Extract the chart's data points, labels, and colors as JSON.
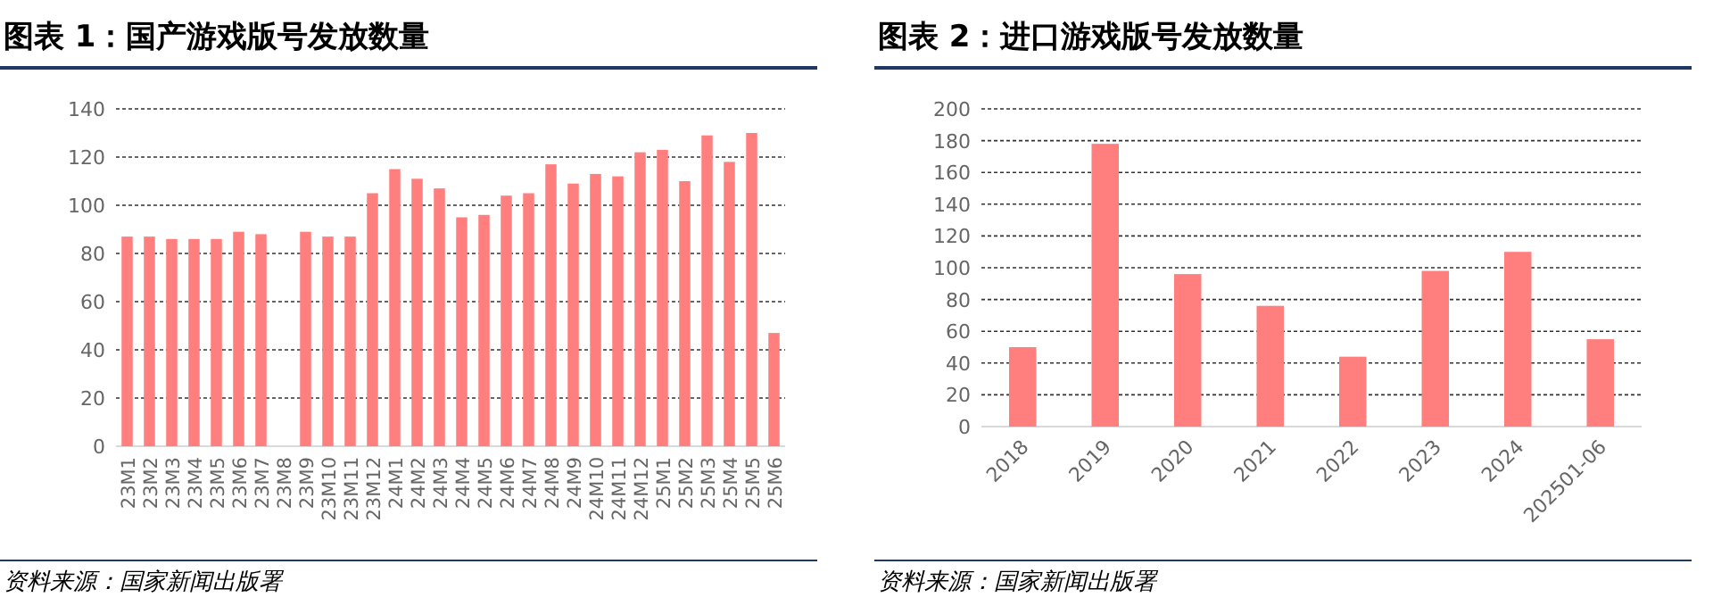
{
  "chart_data": [
    {
      "type": "bar",
      "title": "图表 1：国产游戏版号发放数量",
      "annotations": [
        "资料来源：国家新闻出版署"
      ],
      "categories": [
        "23M1",
        "23M2",
        "23M3",
        "23M4",
        "23M5",
        "23M6",
        "23M7",
        "23M8",
        "23M9",
        "23M10",
        "23M11",
        "23M12",
        "24M1",
        "24M2",
        "24M3",
        "24M4",
        "24M5",
        "24M6",
        "24M7",
        "24M8",
        "24M9",
        "24M10",
        "24M11",
        "24M12",
        "25M1",
        "25M2",
        "25M3",
        "25M4",
        "25M5",
        "25M6"
      ],
      "values": [
        87,
        87,
        86,
        86,
        86,
        89,
        88,
        null,
        89,
        87,
        87,
        105,
        115,
        111,
        107,
        95,
        96,
        104,
        105,
        117,
        109,
        113,
        112,
        122,
        123,
        110,
        129,
        118,
        130,
        47
      ],
      "color": "#ff7f7f",
      "ylim": [
        0,
        140
      ],
      "yticks": [
        0,
        20,
        40,
        60,
        80,
        100,
        120,
        140
      ],
      "grid": "y"
    },
    {
      "type": "bar",
      "title": "图表 2：进口游戏版号发放数量",
      "annotations": [
        "资料来源：国家新闻出版署"
      ],
      "categories": [
        "2018",
        "2019",
        "2020",
        "2021",
        "2022",
        "2023",
        "2024",
        "202501-06"
      ],
      "values": [
        50,
        178,
        96,
        76,
        44,
        98,
        110,
        55
      ],
      "color": "#ff7f7f",
      "ylim": [
        0,
        200
      ],
      "yticks": [
        0,
        20,
        40,
        60,
        80,
        100,
        120,
        140,
        160,
        180,
        200
      ],
      "grid": "y"
    }
  ]
}
